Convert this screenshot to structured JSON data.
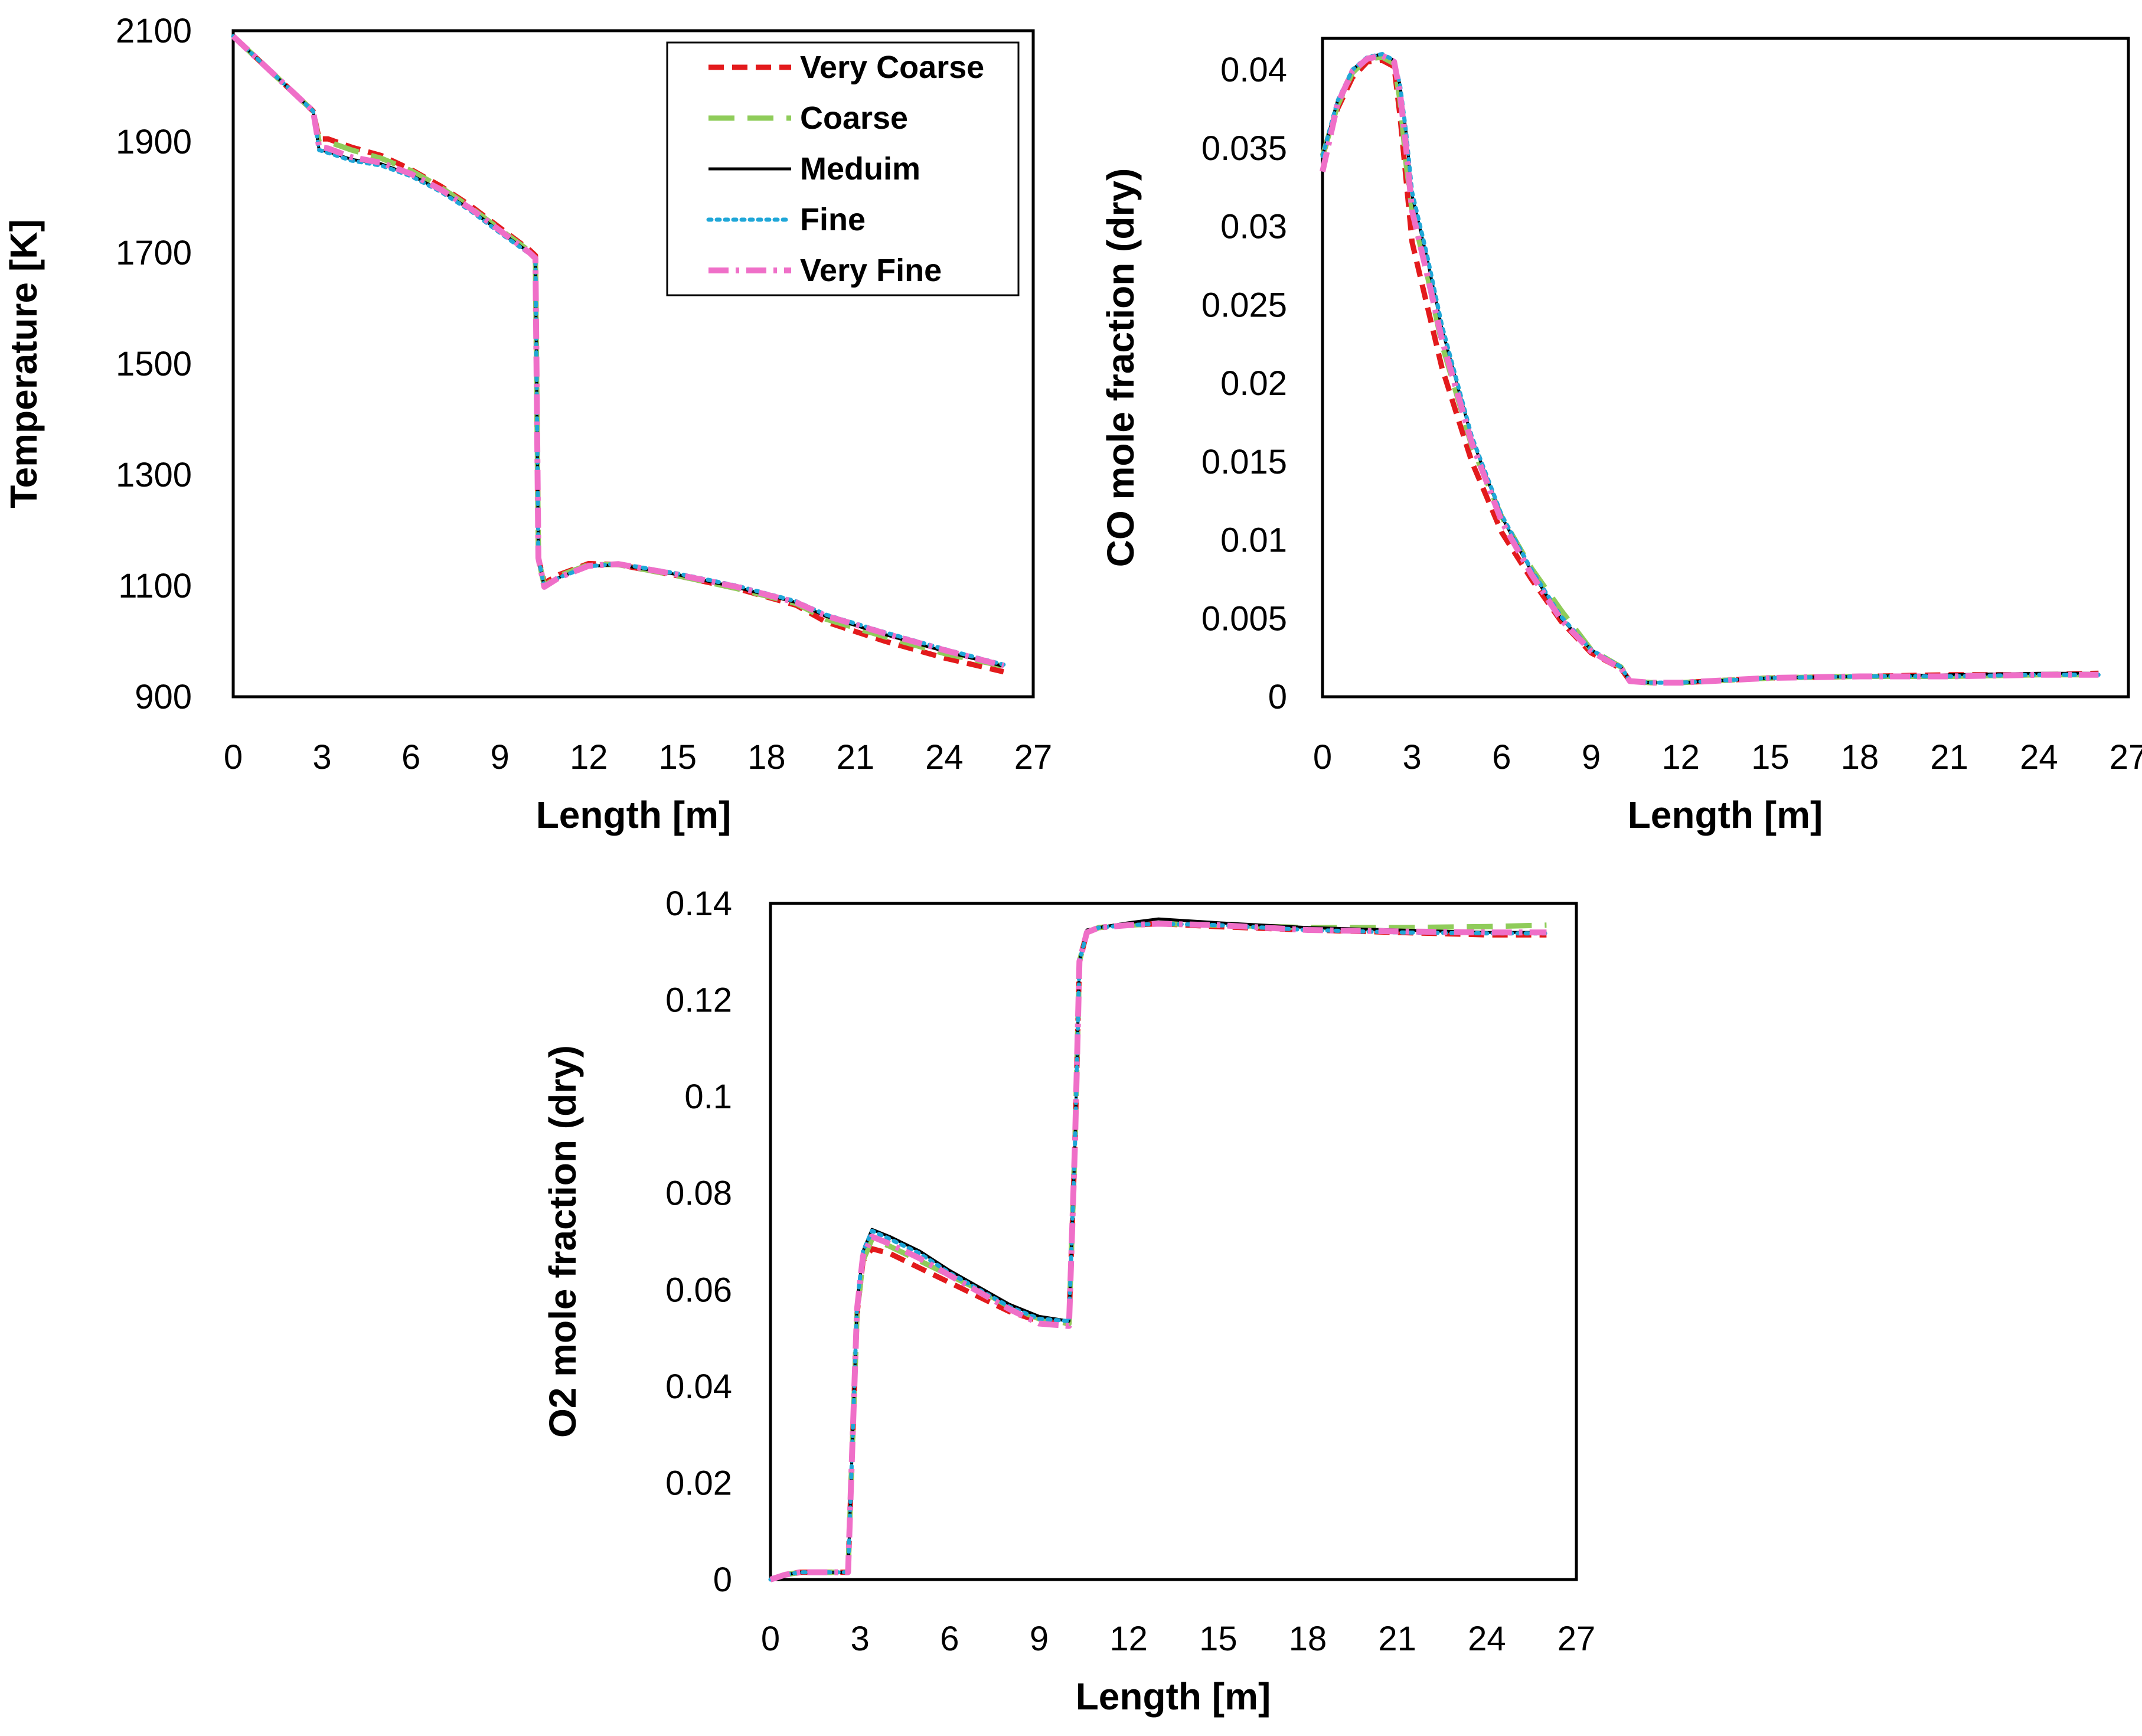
{
  "legend": [
    {
      "name": "Very Coarse",
      "color": "#e31a1c",
      "dash": "dashed"
    },
    {
      "name": "Coarse",
      "color": "#8fcc5a",
      "dash": "long-dashed"
    },
    {
      "name": "Meduim",
      "color": "#000000",
      "dash": "solid"
    },
    {
      "name": "Fine",
      "color": "#1fa7d8",
      "dash": "dotted"
    },
    {
      "name": "Very Fine",
      "color": "#ef6fc8",
      "dash": "dash-dot"
    }
  ],
  "chart_data": [
    {
      "type": "line",
      "id": "temperature",
      "xlabel": "Length [m]",
      "ylabel": "Temperature [K]",
      "xlim": [
        0,
        27
      ],
      "ylim": [
        900,
        2100
      ],
      "xticks": [
        "0",
        "3",
        "6",
        "9",
        "12",
        "15",
        "18",
        "21",
        "24",
        "27"
      ],
      "yticks": [
        "900",
        "1100",
        "1300",
        "1500",
        "1700",
        "1900",
        "2100"
      ],
      "legend": "top-right",
      "series": [
        {
          "name": "Very Coarse",
          "x": [
            0,
            1,
            2,
            2.7,
            2.9,
            3.2,
            4,
            5,
            6,
            7,
            8,
            9,
            10,
            10.2,
            10.3,
            10.5,
            11,
            12,
            13,
            15,
            17,
            19,
            20,
            22,
            24,
            26
          ],
          "y": [
            2090,
            2040,
            1990,
            1955,
            1905,
            1905,
            1890,
            1875,
            1850,
            1820,
            1785,
            1745,
            1705,
            1695,
            1150,
            1105,
            1120,
            1140,
            1138,
            1118,
            1095,
            1065,
            1035,
            1000,
            970,
            945
          ]
        },
        {
          "name": "Coarse",
          "x": [
            0,
            1,
            2,
            2.7,
            2.9,
            3.2,
            4,
            5,
            6,
            7,
            8,
            9,
            10,
            10.2,
            10.3,
            10.5,
            11,
            12,
            13,
            15,
            17,
            19,
            20,
            22,
            24,
            26
          ],
          "y": [
            2090,
            2040,
            1990,
            1955,
            1900,
            1900,
            1885,
            1870,
            1848,
            1818,
            1782,
            1742,
            1703,
            1693,
            1150,
            1100,
            1118,
            1138,
            1138,
            1118,
            1095,
            1068,
            1040,
            1008,
            978,
            955
          ]
        },
        {
          "name": "Meduim",
          "x": [
            0,
            1,
            2,
            2.7,
            2.9,
            3.2,
            4,
            5,
            6,
            7,
            8,
            9,
            10,
            10.2,
            10.3,
            10.5,
            11,
            12,
            13,
            15,
            17,
            19,
            20,
            22,
            24,
            26
          ],
          "y": [
            2090,
            2040,
            1990,
            1955,
            1885,
            1882,
            1868,
            1860,
            1840,
            1812,
            1778,
            1738,
            1700,
            1690,
            1150,
            1098,
            1115,
            1135,
            1138,
            1120,
            1097,
            1070,
            1045,
            1012,
            982,
            955
          ]
        },
        {
          "name": "Fine",
          "x": [
            0,
            1,
            2,
            2.7,
            2.9,
            3.2,
            4,
            5,
            6,
            7,
            8,
            9,
            10,
            10.2,
            10.3,
            10.5,
            11,
            12,
            13,
            15,
            17,
            19,
            20,
            22,
            24,
            26
          ],
          "y": [
            2090,
            2040,
            1990,
            1955,
            1885,
            1880,
            1866,
            1857,
            1838,
            1810,
            1776,
            1736,
            1698,
            1688,
            1150,
            1098,
            1115,
            1135,
            1140,
            1122,
            1100,
            1072,
            1048,
            1016,
            986,
            958
          ]
        },
        {
          "name": "Very Fine",
          "x": [
            0,
            1,
            2,
            2.7,
            2.9,
            3.2,
            4,
            5,
            6,
            7,
            8,
            9,
            10,
            10.2,
            10.3,
            10.5,
            11,
            12,
            13,
            15,
            17,
            19,
            20,
            22,
            24,
            26
          ],
          "y": [
            2090,
            2040,
            1990,
            1955,
            1890,
            1888,
            1872,
            1862,
            1842,
            1814,
            1780,
            1740,
            1700,
            1690,
            1150,
            1098,
            1115,
            1136,
            1139,
            1120,
            1098,
            1070,
            1046,
            1014,
            984,
            956
          ]
        }
      ]
    },
    {
      "type": "line",
      "id": "co",
      "xlabel": "Length [m]",
      "ylabel": "CO mole fraction (dry)",
      "xlim": [
        0,
        27
      ],
      "ylim": [
        0,
        0.042
      ],
      "xticks": [
        "0",
        "3",
        "6",
        "9",
        "12",
        "15",
        "18",
        "21",
        "24",
        "27"
      ],
      "yticks": [
        "0",
        "0.005",
        "0.01",
        "0.015",
        "0.02",
        "0.025",
        "0.03",
        "0.035",
        "0.04"
      ],
      "series": [
        {
          "name": "Very Coarse",
          "x": [
            0,
            0.5,
            1,
            1.5,
            2,
            2.4,
            2.6,
            2.8,
            3,
            3.5,
            4,
            5,
            6,
            7,
            8,
            9,
            10,
            10.3,
            11,
            12,
            15,
            18,
            21,
            24,
            26
          ],
          "y": [
            0.0345,
            0.0375,
            0.0395,
            0.0405,
            0.0406,
            0.0402,
            0.037,
            0.033,
            0.029,
            0.025,
            0.021,
            0.015,
            0.0105,
            0.0075,
            0.0048,
            0.0028,
            0.0018,
            0.001,
            0.0009,
            0.0009,
            0.0012,
            0.0013,
            0.0014,
            0.0014,
            0.0015
          ]
        },
        {
          "name": "Coarse",
          "x": [
            0,
            0.5,
            1,
            1.5,
            2,
            2.4,
            2.6,
            2.8,
            3,
            3.5,
            4,
            5,
            6,
            7,
            8,
            9,
            10,
            10.3,
            11,
            12,
            15,
            18,
            21,
            24,
            26
          ],
          "y": [
            0.0345,
            0.0377,
            0.0398,
            0.0407,
            0.0408,
            0.0404,
            0.038,
            0.034,
            0.031,
            0.027,
            0.0225,
            0.016,
            0.0115,
            0.0082,
            0.0055,
            0.003,
            0.0019,
            0.001,
            0.0009,
            0.0009,
            0.0012,
            0.0013,
            0.0013,
            0.0014,
            0.0014
          ]
        },
        {
          "name": "Meduim",
          "x": [
            0,
            0.5,
            1,
            1.5,
            2,
            2.4,
            2.6,
            2.8,
            3,
            3.5,
            4,
            5,
            6,
            7,
            8,
            9,
            10,
            10.3,
            11,
            12,
            15,
            18,
            21,
            24,
            26
          ],
          "y": [
            0.0345,
            0.038,
            0.04,
            0.0408,
            0.041,
            0.0406,
            0.039,
            0.036,
            0.032,
            0.028,
            0.0235,
            0.0165,
            0.0115,
            0.008,
            0.005,
            0.003,
            0.0019,
            0.001,
            0.0009,
            0.0009,
            0.0012,
            0.0013,
            0.0014,
            0.0015,
            0.0015
          ]
        },
        {
          "name": "Fine",
          "x": [
            0,
            0.5,
            1,
            1.5,
            2,
            2.4,
            2.6,
            2.8,
            3,
            3.5,
            4,
            5,
            6,
            7,
            8,
            9,
            10,
            10.3,
            11,
            12,
            15,
            18,
            21,
            24,
            26
          ],
          "y": [
            0.0345,
            0.038,
            0.04,
            0.0408,
            0.041,
            0.0406,
            0.039,
            0.036,
            0.0322,
            0.0282,
            0.0237,
            0.0166,
            0.0116,
            0.0081,
            0.0051,
            0.003,
            0.0019,
            0.001,
            0.0009,
            0.0009,
            0.0012,
            0.0013,
            0.0013,
            0.0014,
            0.0014
          ]
        },
        {
          "name": "Very Fine",
          "x": [
            0,
            0.5,
            1,
            1.5,
            2,
            2.4,
            2.6,
            2.8,
            3,
            3.5,
            4,
            5,
            6,
            7,
            8,
            9,
            10,
            10.3,
            11,
            12,
            15,
            18,
            21,
            24,
            26
          ],
          "y": [
            0.0335,
            0.0378,
            0.0399,
            0.0407,
            0.0409,
            0.0405,
            0.0385,
            0.035,
            0.031,
            0.027,
            0.0228,
            0.0162,
            0.0112,
            0.0078,
            0.0049,
            0.0029,
            0.0018,
            0.001,
            0.0009,
            0.0009,
            0.0012,
            0.0013,
            0.0013,
            0.0014,
            0.0014
          ]
        }
      ]
    },
    {
      "type": "line",
      "id": "o2",
      "xlabel": "Length [m]",
      "ylabel": "O2 mole fraction (dry)",
      "xlim": [
        0,
        27
      ],
      "ylim": [
        0,
        0.14
      ],
      "xticks": [
        "0",
        "3",
        "6",
        "9",
        "12",
        "15",
        "18",
        "21",
        "24",
        "27"
      ],
      "yticks": [
        "0",
        "0.02",
        "0.04",
        "0.06",
        "0.08",
        "0.1",
        "0.12",
        "0.14"
      ],
      "series": [
        {
          "name": "Very Coarse",
          "x": [
            0,
            0.5,
            1,
            2,
            2.6,
            2.7,
            2.9,
            3.1,
            3.4,
            4,
            5,
            6,
            7,
            8,
            9,
            10,
            10.2,
            10.35,
            10.6,
            11,
            12,
            13,
            15,
            18,
            21,
            24,
            26
          ],
          "y": [
            0,
            0.001,
            0.0015,
            0.0015,
            0.0015,
            0.02,
            0.055,
            0.066,
            0.0685,
            0.0675,
            0.0645,
            0.0615,
            0.0585,
            0.0555,
            0.0535,
            0.053,
            0.09,
            0.128,
            0.134,
            0.135,
            0.1355,
            0.1358,
            0.1352,
            0.1345,
            0.134,
            0.1335,
            0.1335
          ]
        },
        {
          "name": "Coarse",
          "x": [
            0,
            0.5,
            1,
            2,
            2.6,
            2.7,
            2.9,
            3.1,
            3.4,
            4,
            5,
            6,
            7,
            8,
            9,
            10,
            10.2,
            10.35,
            10.6,
            11,
            12,
            13,
            15,
            18,
            21,
            24,
            26
          ],
          "y": [
            0,
            0.001,
            0.0015,
            0.0015,
            0.0015,
            0.02,
            0.055,
            0.066,
            0.0705,
            0.069,
            0.066,
            0.063,
            0.06,
            0.0565,
            0.054,
            0.053,
            0.09,
            0.128,
            0.134,
            0.135,
            0.1355,
            0.1358,
            0.1355,
            0.135,
            0.135,
            0.1352,
            0.1355
          ]
        },
        {
          "name": "Meduim",
          "x": [
            0,
            0.5,
            1,
            2,
            2.6,
            2.7,
            2.9,
            3.1,
            3.4,
            4,
            5,
            6,
            7,
            8,
            9,
            10,
            10.2,
            10.35,
            10.6,
            11,
            12,
            13,
            15,
            18,
            21,
            24,
            26
          ],
          "y": [
            0,
            0.001,
            0.0015,
            0.0015,
            0.0015,
            0.02,
            0.057,
            0.068,
            0.0725,
            0.071,
            0.068,
            0.064,
            0.0605,
            0.057,
            0.0545,
            0.0535,
            0.09,
            0.128,
            0.1345,
            0.135,
            0.136,
            0.1368,
            0.136,
            0.135,
            0.1345,
            0.134,
            0.134
          ]
        },
        {
          "name": "Fine",
          "x": [
            0,
            0.5,
            1,
            2,
            2.6,
            2.7,
            2.9,
            3.1,
            3.4,
            4,
            5,
            6,
            7,
            8,
            9,
            10,
            10.2,
            10.35,
            10.6,
            11,
            12,
            13,
            15,
            18,
            21,
            24,
            26
          ],
          "y": [
            0,
            0.001,
            0.0015,
            0.0015,
            0.0015,
            0.02,
            0.057,
            0.068,
            0.0722,
            0.0705,
            0.0675,
            0.0635,
            0.06,
            0.0565,
            0.054,
            0.0535,
            0.09,
            0.128,
            0.134,
            0.135,
            0.1355,
            0.1358,
            0.1355,
            0.1345,
            0.134,
            0.1338,
            0.1338
          ]
        },
        {
          "name": "Very Fine",
          "x": [
            0,
            0.5,
            1,
            2,
            2.6,
            2.7,
            2.9,
            3.1,
            3.4,
            4,
            5,
            6,
            7,
            8,
            9,
            10,
            10.2,
            10.35,
            10.6,
            11,
            12,
            13,
            15,
            18,
            21,
            24,
            26
          ],
          "y": [
            0,
            0.001,
            0.0015,
            0.0015,
            0.0015,
            0.02,
            0.056,
            0.067,
            0.071,
            0.0695,
            0.0665,
            0.063,
            0.0595,
            0.056,
            0.053,
            0.0525,
            0.09,
            0.128,
            0.134,
            0.135,
            0.1355,
            0.1358,
            0.1355,
            0.1345,
            0.1342,
            0.134,
            0.134
          ]
        }
      ]
    }
  ]
}
